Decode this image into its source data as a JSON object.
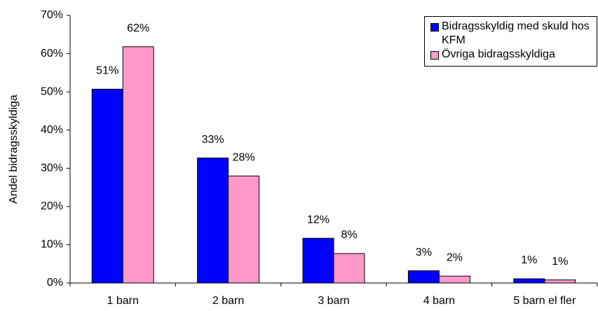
{
  "chart_data": {
    "type": "bar",
    "y_label": "Andel bidragsskyldiga",
    "categories": [
      "1 barn",
      "2 barn",
      "3 barn",
      "4 barn",
      "5 barn el fler"
    ],
    "series": [
      {
        "name": "Bidragsskyldig med skuld hos KFM",
        "color": "#0000ff",
        "values": [
          50.7,
          32.7,
          11.7,
          3.2,
          1.1
        ],
        "value_labels": [
          "51%",
          "33%",
          "12%",
          "3%",
          "1%"
        ]
      },
      {
        "name": "Övriga bidragsskyldiga",
        "color": "#ff99cc",
        "values": [
          61.8,
          28,
          7.7,
          1.8,
          0.8
        ],
        "value_labels": [
          "62%",
          "28%",
          "8%",
          "2%",
          "1%"
        ]
      }
    ],
    "ylim": [
      0,
      70
    ],
    "yticks": [
      {
        "value": 0,
        "label": "0%"
      },
      {
        "value": 10,
        "label": "10%"
      },
      {
        "value": 20,
        "label": "20%"
      },
      {
        "value": 30,
        "label": "30%"
      },
      {
        "value": 40,
        "label": "40%"
      },
      {
        "value": 50,
        "label": "50%"
      },
      {
        "value": 60,
        "label": "60%"
      },
      {
        "value": 70,
        "label": "70%"
      }
    ],
    "legend": "upper right"
  }
}
